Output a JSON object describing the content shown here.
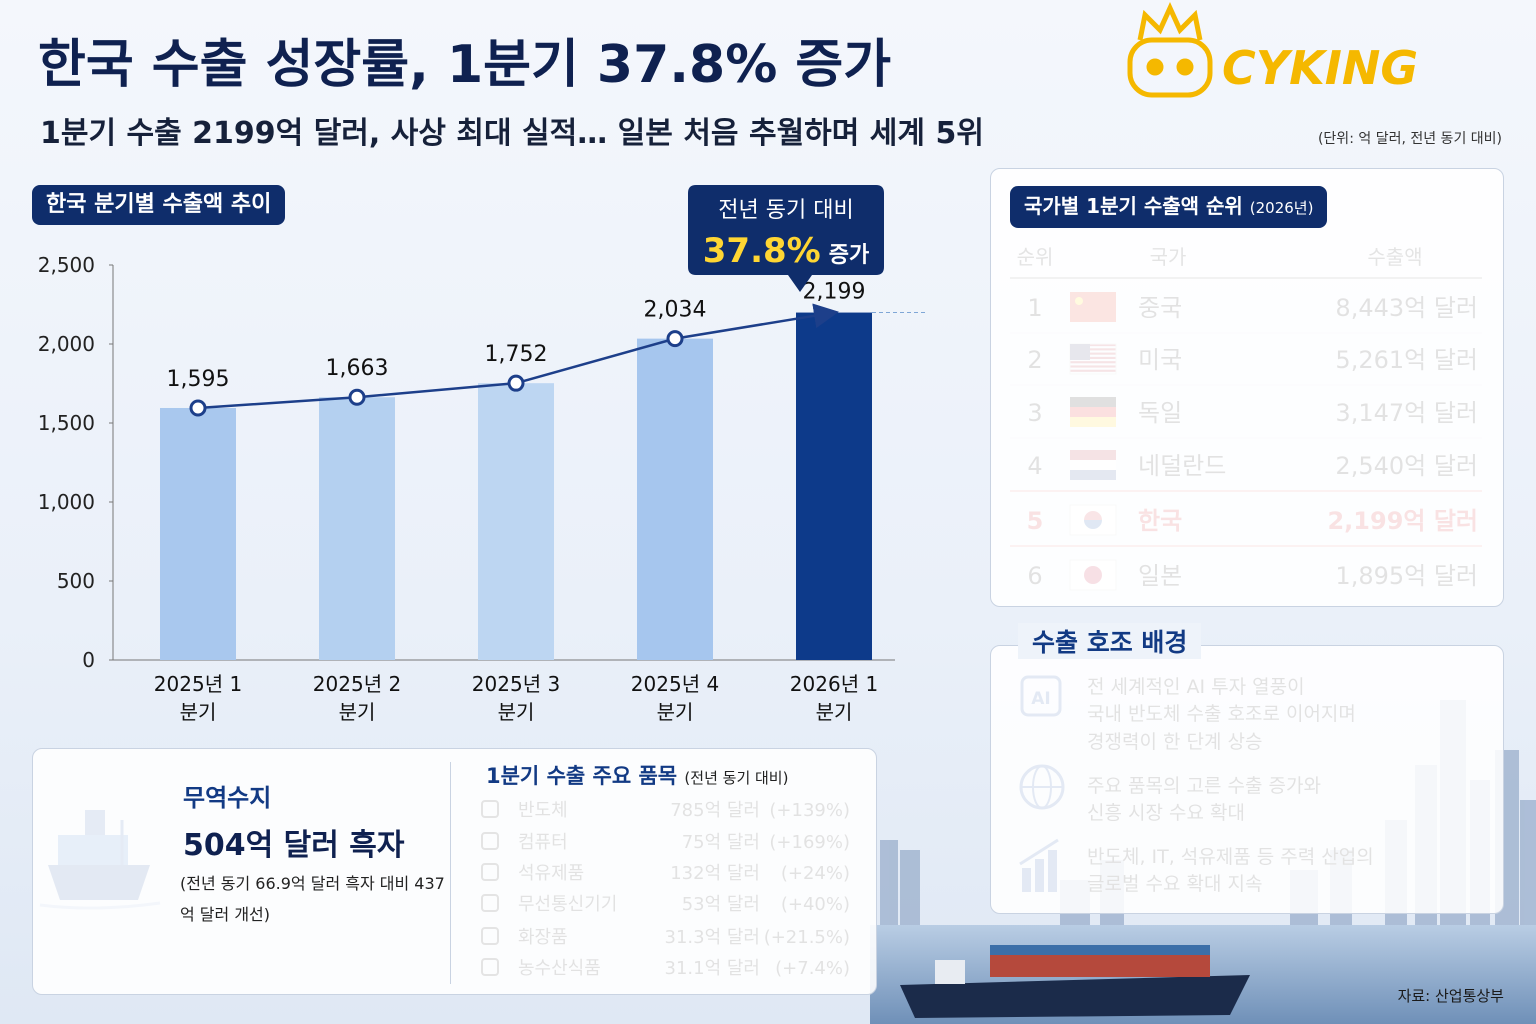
{
  "header": {
    "title": "한국 수출 성장률, 1분기 37.8% 증가",
    "subtitle": "1분기 수출 2199억 달러, 사상 최대 실적… 일본 처음 추월하며 세계 5위",
    "unit_note": "(단위: 억 달러, 전년 동기 대비)",
    "logo": "CYKING"
  },
  "chart_data": {
    "type": "bar",
    "title": "한국 분기별 수출액 추이",
    "categories": [
      "2025년 1분기",
      "2025년 2분기",
      "2025년 3분기",
      "2025년 4분기",
      "2026년 1분기"
    ],
    "values": [
      1595,
      1663,
      1752,
      2034,
      2199
    ],
    "value_labels": [
      "1,595",
      "1,663",
      "1,752",
      "2,034",
      "2,199"
    ],
    "colors": [
      "#a9c8ee",
      "#b4d0f0",
      "#bdd6f2",
      "#a6c6ee",
      "#0d3a8a"
    ],
    "line_color": "#1d3f8a",
    "ylim": [
      0,
      2500
    ],
    "yticks": [
      0,
      500,
      {
        "value": 1000,
        "label": "1,000"
      },
      {
        "value": 1500,
        "label": "1,500"
      },
      {
        "value": 2000,
        "label": "2,000"
      },
      {
        "value": 2500,
        "label": "2,500"
      }
    ],
    "callout": {
      "line1": "전년 동기 대비",
      "value": "37.8%",
      "suffix": "증가"
    }
  },
  "ranking": {
    "title": "국가별 1분기 수출액 순위",
    "title_note": "(2026년)",
    "headers": [
      "순위",
      "국가",
      "수출액"
    ],
    "rows": [
      [
        "1",
        "중국",
        "8,443억 달러"
      ],
      [
        "2",
        "미국",
        "5,261억 달러"
      ],
      [
        "3",
        "독일",
        "3,147억 달러"
      ],
      [
        "4",
        "네덜란드",
        "2,540억 달러"
      ],
      [
        "5",
        "한국",
        "2,199억 달러"
      ],
      [
        "6",
        "일본",
        "1,895억 달러"
      ]
    ]
  },
  "trade_balance": {
    "title": "무역수지",
    "value": "504억 달러 흑자",
    "note": "(전년 동기 66.9억 달러 흑자 대비 437억 달러 개선)"
  },
  "items": {
    "title": "1분기 수출 주요 품목",
    "note": "(전년 동기 대비)",
    "rows": [
      [
        "반도체",
        "785억 달러",
        "(+139%)"
      ],
      [
        "컴퓨터",
        "75억 달러",
        "(+169%)"
      ],
      [
        "석유제품",
        "132억 달러",
        "(+24%)"
      ],
      [
        "무선통신기기",
        "53억 달러",
        "(+40%)"
      ],
      [
        "화장품",
        "31.3억 달러",
        "(+21.5%)"
      ],
      [
        "농수산식품",
        "31.1억 달러",
        "(+7.4%)"
      ]
    ]
  },
  "background": {
    "title": "수출 호조 배경",
    "icon_label": "AI",
    "items": [
      [
        "전 세계적인 AI 투자 열풍이",
        "국내 반도체 수출 호조로 이어지며",
        "경쟁력이 한 단계 상승"
      ],
      [
        "주요 품목의 고른 수출 증가와",
        "신흥 시장 수요 확대"
      ],
      [
        "반도체, IT, 석유제품 등 주력 산업의",
        "글로벌 수요 확대 지속"
      ]
    ]
  },
  "source": "자료: 산업통상부"
}
